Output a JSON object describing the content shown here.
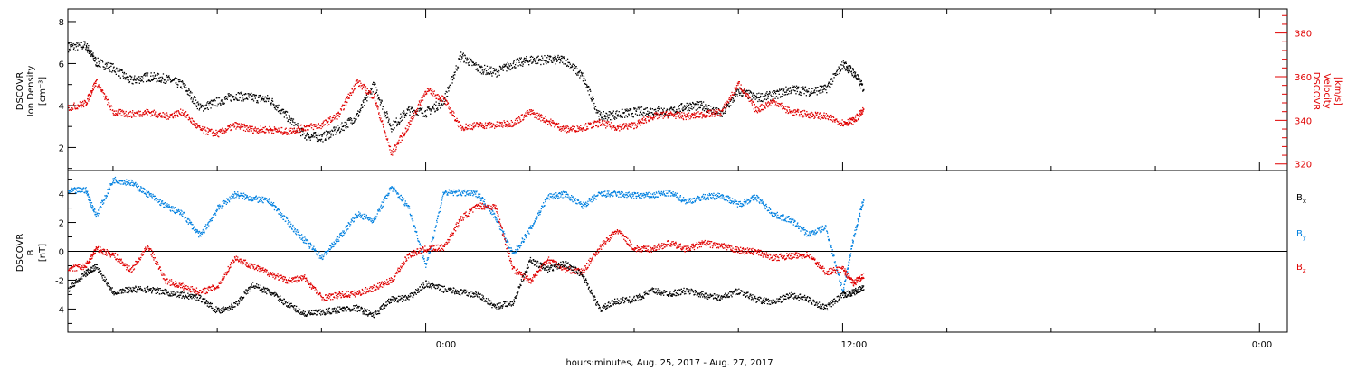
{
  "colors": {
    "black": "#000000",
    "red": "#e00000",
    "blue": "#0080e0"
  },
  "top_panel": {
    "ylabel_lines": [
      "DSCOVR",
      "Ion Density"
    ],
    "ylabel_unit": "[cm⁻³]",
    "y2label_lines": [
      "DSCOVR",
      "Velocity",
      "[km/s]"
    ]
  },
  "bottom_panel": {
    "ylabel_lines": [
      "DSCOVR",
      "B",
      "[nT]"
    ],
    "legend": [
      {
        "label": "B",
        "sub": "x",
        "color": "black"
      },
      {
        "label": "B",
        "sub": "y",
        "color": "blue"
      },
      {
        "label": "B",
        "sub": "z",
        "color": "red"
      }
    ]
  },
  "xaxis": {
    "label": "hours:minutes, Aug. 25, 2017 - Aug. 27, 2017",
    "ticks": [
      {
        "h": 24,
        "label": "0:00"
      },
      {
        "h": 36,
        "label": "12:00"
      },
      {
        "h": 48,
        "label": "0:00"
      }
    ]
  },
  "chart_data": [
    {
      "type": "scatter",
      "title": "",
      "xlabel": "hours:minutes, Aug. 25, 2017 - Aug. 27, 2017",
      "x_units": "hours since Aug. 25, 2017 00:00",
      "xlim": [
        13.7,
        48.8
      ],
      "ylabel": "DSCOVR Ion Density [cm⁻³]",
      "ylim": [
        0.9,
        8.6
      ],
      "y_ticks": [
        2,
        4,
        6,
        8
      ],
      "y2label": "DSCOVR Velocity [km/s]",
      "y2lim": [
        317,
        391
      ],
      "y2_ticks": [
        320,
        340,
        360,
        380
      ],
      "series": [
        {
          "name": "Ion Density",
          "axis": "left",
          "color": "black",
          "points": [
            [
              13.7,
              6.8
            ],
            [
              14.2,
              6.9
            ],
            [
              14.5,
              6.1
            ],
            [
              15.0,
              5.8
            ],
            [
              15.5,
              5.2
            ],
            [
              16.0,
              5.4
            ],
            [
              16.5,
              5.3
            ],
            [
              17.0,
              5.0
            ],
            [
              17.5,
              3.9
            ],
            [
              18.0,
              4.2
            ],
            [
              18.5,
              4.5
            ],
            [
              19.0,
              4.4
            ],
            [
              19.5,
              4.3
            ],
            [
              20.0,
              3.5
            ],
            [
              20.5,
              2.6
            ],
            [
              21.0,
              2.5
            ],
            [
              21.5,
              2.9
            ],
            [
              22.0,
              3.5
            ],
            [
              22.5,
              5.0
            ],
            [
              23.0,
              3.0
            ],
            [
              23.5,
              3.8
            ],
            [
              24.0,
              3.7
            ],
            [
              24.5,
              4.2
            ],
            [
              25.0,
              6.4
            ],
            [
              25.5,
              5.8
            ],
            [
              26.0,
              5.6
            ],
            [
              26.5,
              6.0
            ],
            [
              27.0,
              6.2
            ],
            [
              27.5,
              6.2
            ],
            [
              28.0,
              6.2
            ],
            [
              28.5,
              5.4
            ],
            [
              29.0,
              3.5
            ],
            [
              29.5,
              3.6
            ],
            [
              30.0,
              3.7
            ],
            [
              30.5,
              3.8
            ],
            [
              31.0,
              3.7
            ],
            [
              31.5,
              4.0
            ],
            [
              32.0,
              4.0
            ],
            [
              32.5,
              3.6
            ],
            [
              33.0,
              4.7
            ],
            [
              33.5,
              4.4
            ],
            [
              34.0,
              4.5
            ],
            [
              34.5,
              4.8
            ],
            [
              35.0,
              4.7
            ],
            [
              35.5,
              4.8
            ],
            [
              36.0,
              6.0
            ],
            [
              36.3,
              5.6
            ],
            [
              36.6,
              4.8
            ]
          ]
        },
        {
          "name": "Velocity",
          "axis": "right",
          "color": "red",
          "points": [
            [
              13.7,
              346
            ],
            [
              14.2,
              348
            ],
            [
              14.5,
              358
            ],
            [
              15.0,
              344
            ],
            [
              15.5,
              343
            ],
            [
              16.0,
              344
            ],
            [
              16.5,
              342
            ],
            [
              17.0,
              344
            ],
            [
              17.5,
              336
            ],
            [
              18.0,
              334
            ],
            [
              18.5,
              338
            ],
            [
              19.0,
              336
            ],
            [
              19.5,
              336
            ],
            [
              20.0,
              335
            ],
            [
              20.5,
              337
            ],
            [
              21.0,
              338
            ],
            [
              21.5,
              343
            ],
            [
              22.0,
              358
            ],
            [
              22.5,
              351
            ],
            [
              23.0,
              325
            ],
            [
              23.5,
              338
            ],
            [
              24.0,
              354
            ],
            [
              24.5,
              350
            ],
            [
              25.0,
              337
            ],
            [
              25.5,
              338
            ],
            [
              26.0,
              338
            ],
            [
              26.5,
              339
            ],
            [
              27.0,
              344
            ],
            [
              27.5,
              340
            ],
            [
              28.0,
              336
            ],
            [
              28.5,
              337
            ],
            [
              29.0,
              339
            ],
            [
              29.5,
              337
            ],
            [
              30.0,
              338
            ],
            [
              30.5,
              342
            ],
            [
              31.0,
              343
            ],
            [
              31.5,
              342
            ],
            [
              32.0,
              343
            ],
            [
              32.5,
              344
            ],
            [
              33.0,
              357
            ],
            [
              33.5,
              345
            ],
            [
              34.0,
              349
            ],
            [
              34.5,
              344
            ],
            [
              35.0,
              343
            ],
            [
              35.5,
              342
            ],
            [
              36.0,
              339
            ],
            [
              36.3,
              340
            ],
            [
              36.6,
              345
            ]
          ]
        }
      ]
    },
    {
      "type": "scatter",
      "title": "",
      "xlabel": "hours:minutes, Aug. 25, 2017 - Aug. 27, 2017",
      "x_units": "hours since Aug. 25, 2017 00:00",
      "xlim": [
        13.7,
        48.8
      ],
      "ylabel": "DSCOVR B [nT]",
      "ylim": [
        -5.6,
        5.6
      ],
      "y_ticks": [
        -4,
        -2,
        0,
        2,
        4
      ],
      "zero_line": true,
      "series": [
        {
          "name": "Bx",
          "color": "black",
          "points": [
            [
              13.7,
              -2.6
            ],
            [
              14.2,
              -1.5
            ],
            [
              14.5,
              -1.0
            ],
            [
              15.0,
              -2.8
            ],
            [
              15.5,
              -2.6
            ],
            [
              16.0,
              -2.6
            ],
            [
              16.5,
              -2.8
            ],
            [
              17.0,
              -3.0
            ],
            [
              17.5,
              -3.2
            ],
            [
              18.0,
              -4.1
            ],
            [
              18.5,
              -3.7
            ],
            [
              19.0,
              -2.3
            ],
            [
              19.5,
              -2.8
            ],
            [
              20.0,
              -3.6
            ],
            [
              20.5,
              -4.3
            ],
            [
              21.0,
              -4.2
            ],
            [
              21.5,
              -4.0
            ],
            [
              22.0,
              -3.9
            ],
            [
              22.5,
              -4.4
            ],
            [
              23.0,
              -3.3
            ],
            [
              23.5,
              -3.2
            ],
            [
              24.0,
              -2.2
            ],
            [
              24.5,
              -2.6
            ],
            [
              25.0,
              -2.8
            ],
            [
              25.5,
              -3.0
            ],
            [
              26.0,
              -3.8
            ],
            [
              26.5,
              -3.5
            ],
            [
              27.0,
              -0.6
            ],
            [
              27.5,
              -1.2
            ],
            [
              28.0,
              -0.8
            ],
            [
              28.5,
              -1.6
            ],
            [
              29.0,
              -4.0
            ],
            [
              29.5,
              -3.4
            ],
            [
              30.0,
              -3.3
            ],
            [
              30.5,
              -2.7
            ],
            [
              31.0,
              -2.9
            ],
            [
              31.5,
              -2.7
            ],
            [
              32.0,
              -3.0
            ],
            [
              32.5,
              -3.2
            ],
            [
              33.0,
              -2.7
            ],
            [
              33.5,
              -3.3
            ],
            [
              34.0,
              -3.5
            ],
            [
              34.5,
              -3.0
            ],
            [
              35.0,
              -3.3
            ],
            [
              35.5,
              -3.9
            ],
            [
              36.0,
              -3.0
            ],
            [
              36.3,
              -2.8
            ],
            [
              36.6,
              -2.5
            ]
          ]
        },
        {
          "name": "By",
          "color": "blue",
          "points": [
            [
              13.7,
              4.2
            ],
            [
              14.2,
              4.3
            ],
            [
              14.5,
              2.5
            ],
            [
              15.0,
              5.0
            ],
            [
              15.5,
              4.8
            ],
            [
              16.0,
              4.0
            ],
            [
              16.5,
              3.2
            ],
            [
              17.0,
              2.6
            ],
            [
              17.5,
              1.1
            ],
            [
              18.0,
              3.0
            ],
            [
              18.5,
              4.0
            ],
            [
              19.0,
              3.7
            ],
            [
              19.5,
              3.5
            ],
            [
              20.0,
              2.1
            ],
            [
              20.5,
              0.8
            ],
            [
              21.0,
              -0.4
            ],
            [
              21.5,
              1.0
            ],
            [
              22.0,
              2.6
            ],
            [
              22.5,
              2.2
            ],
            [
              23.0,
              4.5
            ],
            [
              23.5,
              3.1
            ],
            [
              24.0,
              -1.0
            ],
            [
              24.5,
              4.1
            ],
            [
              25.0,
              4.1
            ],
            [
              25.5,
              4.0
            ],
            [
              26.0,
              2.4
            ],
            [
              26.5,
              -0.2
            ],
            [
              27.0,
              1.6
            ],
            [
              27.5,
              3.8
            ],
            [
              28.0,
              4.0
            ],
            [
              28.5,
              3.2
            ],
            [
              29.0,
              4.0
            ],
            [
              29.5,
              4.0
            ],
            [
              30.0,
              3.9
            ],
            [
              30.5,
              3.9
            ],
            [
              31.0,
              4.1
            ],
            [
              31.5,
              3.5
            ],
            [
              32.0,
              3.8
            ],
            [
              32.5,
              3.9
            ],
            [
              33.0,
              3.3
            ],
            [
              33.5,
              3.8
            ],
            [
              34.0,
              2.6
            ],
            [
              34.5,
              2.2
            ],
            [
              35.0,
              1.2
            ],
            [
              35.5,
              1.7
            ],
            [
              36.0,
              -2.8
            ],
            [
              36.3,
              1.0
            ],
            [
              36.6,
              3.7
            ]
          ]
        },
        {
          "name": "Bz",
          "color": "red",
          "points": [
            [
              13.7,
              -1.2
            ],
            [
              14.2,
              -1.0
            ],
            [
              14.5,
              0.2
            ],
            [
              15.0,
              -0.2
            ],
            [
              15.5,
              -1.3
            ],
            [
              16.0,
              0.4
            ],
            [
              16.5,
              -2.0
            ],
            [
              17.0,
              -2.4
            ],
            [
              17.5,
              -2.8
            ],
            [
              18.0,
              -2.4
            ],
            [
              18.5,
              -0.4
            ],
            [
              19.0,
              -1.0
            ],
            [
              19.5,
              -1.5
            ],
            [
              20.0,
              -2.0
            ],
            [
              20.5,
              -1.8
            ],
            [
              21.0,
              -3.2
            ],
            [
              21.5,
              -3.0
            ],
            [
              22.0,
              -2.9
            ],
            [
              22.5,
              -2.5
            ],
            [
              23.0,
              -2.0
            ],
            [
              23.5,
              -0.2
            ],
            [
              24.0,
              0.2
            ],
            [
              24.5,
              0.3
            ],
            [
              25.0,
              2.3
            ],
            [
              25.5,
              3.2
            ],
            [
              26.0,
              3.1
            ],
            [
              26.5,
              -1.2
            ],
            [
              27.0,
              -2.0
            ],
            [
              27.5,
              -0.5
            ],
            [
              28.0,
              -1.2
            ],
            [
              28.5,
              -1.4
            ],
            [
              29.0,
              0.3
            ],
            [
              29.5,
              1.5
            ],
            [
              30.0,
              0.2
            ],
            [
              30.5,
              0.2
            ],
            [
              31.0,
              0.6
            ],
            [
              31.5,
              0.2
            ],
            [
              32.0,
              0.6
            ],
            [
              32.5,
              0.4
            ],
            [
              33.0,
              0.1
            ],
            [
              33.5,
              0.0
            ],
            [
              34.0,
              -0.4
            ],
            [
              34.5,
              -0.3
            ],
            [
              35.0,
              -0.2
            ],
            [
              35.5,
              -1.4
            ],
            [
              36.0,
              -1.2
            ],
            [
              36.3,
              -2.2
            ],
            [
              36.6,
              -1.6
            ]
          ]
        }
      ]
    }
  ]
}
